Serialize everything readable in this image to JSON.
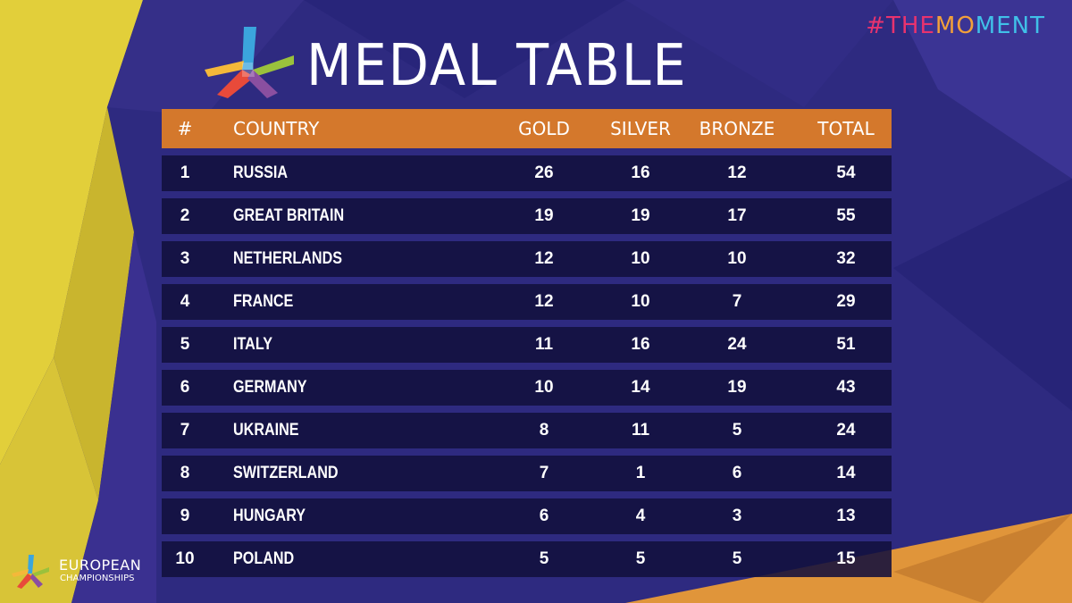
{
  "hashtag": [
    "#",
    "THE",
    "MO",
    "MENT"
  ],
  "hashtag_colors": [
    "#e8336e",
    "#e8336e",
    "#f2a03a",
    "#40c0e8"
  ],
  "title": "MEDAL TABLE",
  "columns": {
    "rank": "#",
    "country": "COUNTRY",
    "gold": "GOLD",
    "silver": "SILVER",
    "bronze": "BRONZE",
    "total": "TOTAL"
  },
  "rows": [
    {
      "rank": "1",
      "country": "RUSSIA",
      "gold": "26",
      "silver": "16",
      "bronze": "12",
      "total": "54"
    },
    {
      "rank": "2",
      "country": "GREAT BRITAIN",
      "gold": "19",
      "silver": "19",
      "bronze": "17",
      "total": "55"
    },
    {
      "rank": "3",
      "country": "NETHERLANDS",
      "gold": "12",
      "silver": "10",
      "bronze": "10",
      "total": "32"
    },
    {
      "rank": "4",
      "country": "FRANCE",
      "gold": "12",
      "silver": "10",
      "bronze": "7",
      "total": "29"
    },
    {
      "rank": "5",
      "country": "ITALY",
      "gold": "11",
      "silver": "16",
      "bronze": "24",
      "total": "51"
    },
    {
      "rank": "6",
      "country": "GERMANY",
      "gold": "10",
      "silver": "14",
      "bronze": "19",
      "total": "43"
    },
    {
      "rank": "7",
      "country": "UKRAINE",
      "gold": "8",
      "silver": "11",
      "bronze": "5",
      "total": "24"
    },
    {
      "rank": "8",
      "country": "SWITZERLAND",
      "gold": "7",
      "silver": "1",
      "bronze": "6",
      "total": "14"
    },
    {
      "rank": "9",
      "country": "HUNGARY",
      "gold": "6",
      "silver": "4",
      "bronze": "3",
      "total": "13"
    },
    {
      "rank": "10",
      "country": "POLAND",
      "gold": "5",
      "silver": "5",
      "bronze": "5",
      "total": "15"
    }
  ],
  "footer": {
    "line1": "EUROPEAN",
    "line2": "CHAMPIONSHIPS"
  },
  "colors": {
    "background": "#2e2a80",
    "header": "#d4782c",
    "row": "#12103c",
    "accent_yellow": "#e2cf3a",
    "accent_orange": "#e0953a"
  }
}
